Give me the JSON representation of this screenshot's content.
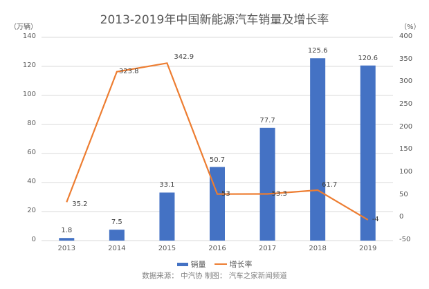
{
  "title": "2013-2019年中国新能源汽车销量及增长率",
  "left_unit": "（万辆）",
  "right_unit": "（%）",
  "left_ticks": [
    "140",
    "120",
    "100",
    "80",
    "60",
    "40",
    "20",
    "0"
  ],
  "right_ticks": [
    "400",
    "350",
    "300",
    "250",
    "200",
    "150",
    "100",
    "50",
    "0",
    "-50"
  ],
  "legend": {
    "bar": "销量",
    "line": "增长率"
  },
  "source": "数据来源：  中汽协 制图：  汽车之家新闻频道",
  "colors": {
    "bar": "#4472c4",
    "line": "#ed7d31",
    "grid": "#d9d9d9"
  },
  "chart_data": {
    "type": "bar",
    "title": "2013-2019年中国新能源汽车销量及增长率",
    "categories": [
      "2013",
      "2014",
      "2015",
      "2016",
      "2017",
      "2018",
      "2019"
    ],
    "series": [
      {
        "name": "销量",
        "type": "bar",
        "axis": "left",
        "unit": "万辆",
        "values": [
          1.8,
          7.5,
          33.1,
          50.7,
          77.7,
          125.6,
          120.6
        ]
      },
      {
        "name": "增长率",
        "type": "line",
        "axis": "right",
        "unit": "%",
        "values": [
          35.2,
          323.8,
          342.9,
          53,
          53.3,
          61.7,
          -4
        ]
      }
    ],
    "bar_labels": [
      "1.8",
      "7.5",
      "33.1",
      "50.7",
      "77.7",
      "125.6",
      "120.6"
    ],
    "line_labels": [
      "35.2",
      "323.8",
      "342.9",
      "53",
      "53.3",
      "61.7",
      "-4"
    ],
    "ylabel": "万辆",
    "y2label": "%",
    "ylim": [
      0,
      140
    ],
    "y2lim": [
      -50,
      400
    ],
    "grid": true,
    "legend_position": "bottom",
    "annotation": "数据来源：  中汽协 制图：  汽车之家新闻频道"
  }
}
